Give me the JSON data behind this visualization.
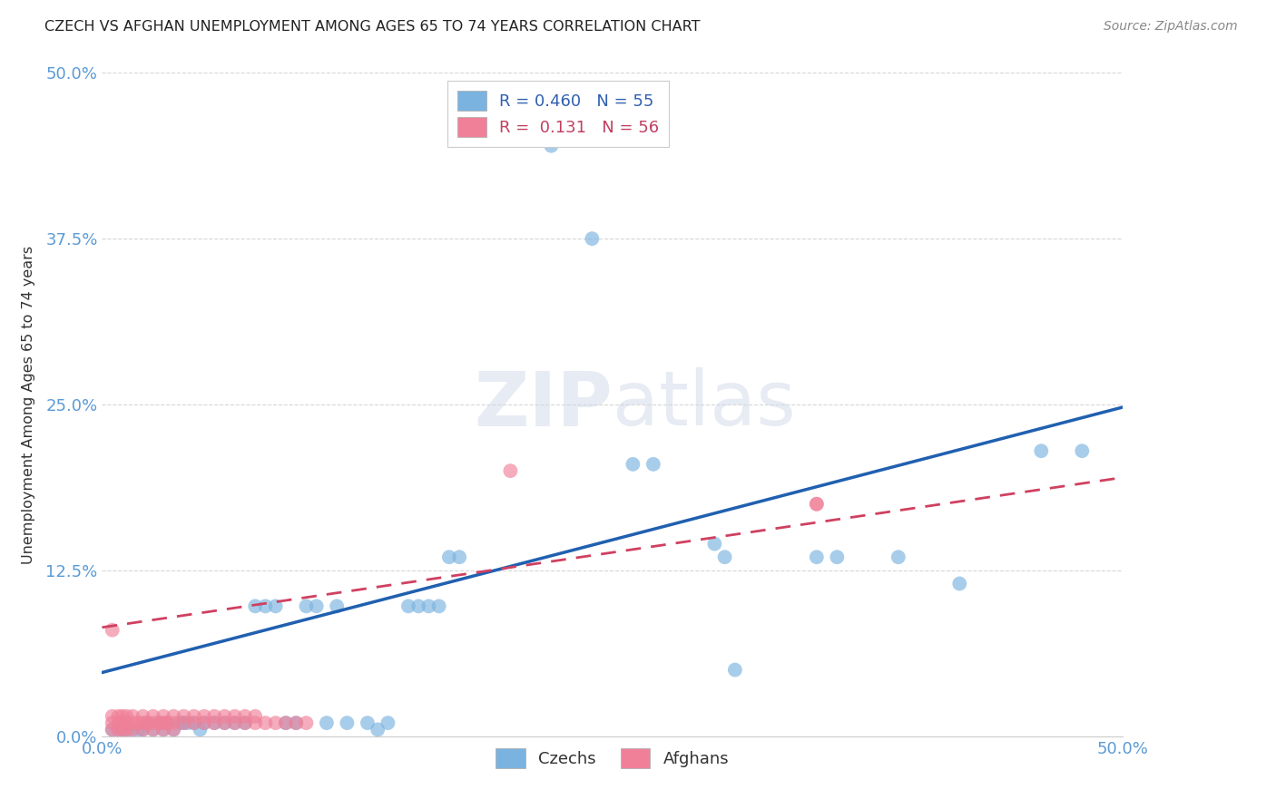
{
  "title": "CZECH VS AFGHAN UNEMPLOYMENT AMONG AGES 65 TO 74 YEARS CORRELATION CHART",
  "source": "Source: ZipAtlas.com",
  "ylabel": "Unemployment Among Ages 65 to 74 years",
  "xlim": [
    0.0,
    0.5
  ],
  "ylim": [
    0.0,
    0.5
  ],
  "ytick_positions": [
    0.0,
    0.125,
    0.25,
    0.375,
    0.5
  ],
  "xtick_positions": [
    0.0,
    0.5
  ],
  "czech_color": "#7ab3e0",
  "afghan_color": "#f08098",
  "czech_line_color": "#2060b0",
  "afghan_line_color": "#d04060",
  "background_color": "#ffffff",
  "grid_color": "#cccccc",
  "watermark": "ZIPatlas",
  "czech_line": [
    0.0,
    0.048,
    0.5,
    0.248
  ],
  "afghan_line": [
    0.0,
    0.082,
    0.5,
    0.195
  ],
  "czech_points": [
    [
      0.005,
      0.005
    ],
    [
      0.008,
      0.005
    ],
    [
      0.01,
      0.005
    ],
    [
      0.012,
      0.005
    ],
    [
      0.015,
      0.005
    ],
    [
      0.018,
      0.005
    ],
    [
      0.02,
      0.005
    ],
    [
      0.022,
      0.01
    ],
    [
      0.025,
      0.005
    ],
    [
      0.028,
      0.01
    ],
    [
      0.03,
      0.005
    ],
    [
      0.032,
      0.01
    ],
    [
      0.035,
      0.005
    ],
    [
      0.038,
      0.01
    ],
    [
      0.04,
      0.01
    ],
    [
      0.042,
      0.01
    ],
    [
      0.045,
      0.01
    ],
    [
      0.048,
      0.005
    ],
    [
      0.05,
      0.01
    ],
    [
      0.055,
      0.01
    ],
    [
      0.06,
      0.01
    ],
    [
      0.065,
      0.01
    ],
    [
      0.07,
      0.01
    ],
    [
      0.075,
      0.098
    ],
    [
      0.08,
      0.098
    ],
    [
      0.085,
      0.098
    ],
    [
      0.09,
      0.01
    ],
    [
      0.095,
      0.01
    ],
    [
      0.1,
      0.098
    ],
    [
      0.105,
      0.098
    ],
    [
      0.11,
      0.01
    ],
    [
      0.115,
      0.098
    ],
    [
      0.12,
      0.01
    ],
    [
      0.13,
      0.01
    ],
    [
      0.135,
      0.005
    ],
    [
      0.14,
      0.01
    ],
    [
      0.15,
      0.098
    ],
    [
      0.155,
      0.098
    ],
    [
      0.16,
      0.098
    ],
    [
      0.165,
      0.098
    ],
    [
      0.17,
      0.135
    ],
    [
      0.175,
      0.135
    ],
    [
      0.22,
      0.445
    ],
    [
      0.24,
      0.375
    ],
    [
      0.26,
      0.205
    ],
    [
      0.27,
      0.205
    ],
    [
      0.3,
      0.145
    ],
    [
      0.305,
      0.135
    ],
    [
      0.31,
      0.05
    ],
    [
      0.35,
      0.135
    ],
    [
      0.36,
      0.135
    ],
    [
      0.39,
      0.135
    ],
    [
      0.42,
      0.115
    ],
    [
      0.46,
      0.215
    ],
    [
      0.48,
      0.215
    ]
  ],
  "afghan_points": [
    [
      0.005,
      0.005
    ],
    [
      0.008,
      0.005
    ],
    [
      0.01,
      0.005
    ],
    [
      0.012,
      0.005
    ],
    [
      0.015,
      0.005
    ],
    [
      0.005,
      0.01
    ],
    [
      0.008,
      0.01
    ],
    [
      0.01,
      0.01
    ],
    [
      0.012,
      0.01
    ],
    [
      0.015,
      0.01
    ],
    [
      0.005,
      0.015
    ],
    [
      0.008,
      0.015
    ],
    [
      0.01,
      0.015
    ],
    [
      0.012,
      0.015
    ],
    [
      0.015,
      0.015
    ],
    [
      0.018,
      0.01
    ],
    [
      0.02,
      0.01
    ],
    [
      0.022,
      0.01
    ],
    [
      0.025,
      0.01
    ],
    [
      0.028,
      0.01
    ],
    [
      0.03,
      0.01
    ],
    [
      0.032,
      0.01
    ],
    [
      0.035,
      0.01
    ],
    [
      0.02,
      0.015
    ],
    [
      0.025,
      0.015
    ],
    [
      0.03,
      0.015
    ],
    [
      0.035,
      0.015
    ],
    [
      0.02,
      0.005
    ],
    [
      0.025,
      0.005
    ],
    [
      0.03,
      0.005
    ],
    [
      0.035,
      0.005
    ],
    [
      0.04,
      0.01
    ],
    [
      0.045,
      0.01
    ],
    [
      0.05,
      0.01
    ],
    [
      0.055,
      0.01
    ],
    [
      0.04,
      0.015
    ],
    [
      0.045,
      0.015
    ],
    [
      0.05,
      0.015
    ],
    [
      0.055,
      0.015
    ],
    [
      0.06,
      0.01
    ],
    [
      0.065,
      0.01
    ],
    [
      0.07,
      0.01
    ],
    [
      0.075,
      0.01
    ],
    [
      0.06,
      0.015
    ],
    [
      0.065,
      0.015
    ],
    [
      0.07,
      0.015
    ],
    [
      0.075,
      0.015
    ],
    [
      0.08,
      0.01
    ],
    [
      0.085,
      0.01
    ],
    [
      0.09,
      0.01
    ],
    [
      0.095,
      0.01
    ],
    [
      0.1,
      0.01
    ],
    [
      0.005,
      0.08
    ],
    [
      0.35,
      0.175
    ],
    [
      0.2,
      0.2
    ],
    [
      0.35,
      0.175
    ]
  ]
}
